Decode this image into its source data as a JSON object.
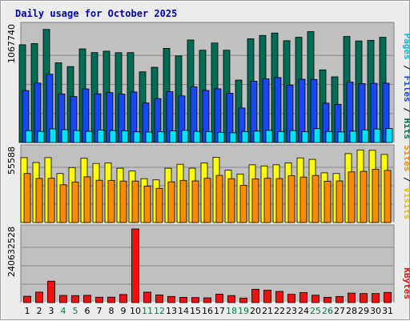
{
  "chart_data": {
    "type": "bar",
    "title": "Daily usage for October 2025",
    "days": [
      "1",
      "2",
      "3",
      "4",
      "5",
      "6",
      "7",
      "8",
      "9",
      "10",
      "11",
      "12",
      "13",
      "14",
      "15",
      "16",
      "17",
      "18",
      "19",
      "20",
      "21",
      "22",
      "23",
      "24",
      "25",
      "26",
      "27",
      "28",
      "29",
      "30",
      "31"
    ],
    "weekend_days": [
      "4",
      "5",
      "11",
      "12",
      "18",
      "19",
      "25",
      "26"
    ],
    "panels": [
      {
        "id": "top",
        "ymax_label": "1067740",
        "ymax": 1067740,
        "series": [
          {
            "name": "Hits",
            "color": "#006c54",
            "values": [
              899000,
              910000,
              1040000,
              733000,
              698000,
              861000,
              827000,
              840000,
              826000,
              827000,
              650000,
              692000,
              866000,
              796000,
              943000,
              849000,
              915000,
              849000,
              574000,
              954000,
              985000,
              1007000,
              936000,
              968000,
              1020000,
              668000,
              604000,
              975000,
              934000,
              940000,
              968000
            ]
          },
          {
            "name": "Files",
            "color": "#1846f0",
            "values": [
              478000,
              547000,
              628000,
              447000,
              423000,
              493000,
              448000,
              459000,
              445000,
              465000,
              364000,
              404000,
              468000,
              429000,
              512000,
              479000,
              494000,
              453000,
              317000,
              564000,
              586000,
              597000,
              528000,
              582000,
              580000,
              362000,
              351000,
              556000,
              542000,
              544000,
              545000
            ]
          },
          {
            "name": "Pages",
            "color": "#00e0ff",
            "values": [
              109000,
              102000,
              125000,
              118000,
              110000,
              103000,
              115000,
              110000,
              108000,
              98000,
              96000,
              100000,
              107000,
              112000,
              102000,
              101000,
              93000,
              89000,
              101000,
              105000,
              111000,
              101000,
              109000,
              99000,
              127000,
              101000,
              97000,
              104000,
              116000,
              124000,
              129000
            ]
          }
        ]
      },
      {
        "id": "middle",
        "ymax_label": "55588",
        "ymax": 55588,
        "series": [
          {
            "name": "Visits",
            "color": "#ffff00",
            "values": [
              49000,
              45300,
              49000,
              37000,
              41500,
              48500,
              44600,
              44900,
              41000,
              38900,
              33100,
              32200,
              41000,
              44000,
              41000,
              44900,
              49300,
              39500,
              36600,
              43600,
              42700,
              43600,
              45000,
              48800,
              47700,
              37500,
              37000,
              52000,
              54800,
              54500,
              51400
            ]
          },
          {
            "name": "Sites",
            "color": "#ff8c00",
            "values": [
              37000,
              33300,
              33400,
              28500,
              30600,
              34500,
              31900,
              31800,
              31300,
              31300,
              27500,
              25800,
              30700,
              31800,
              31400,
              33400,
              35600,
              33100,
              28100,
              33000,
              33400,
              33200,
              35300,
              34300,
              35500,
              31200,
              31400,
              38200,
              38600,
              40200,
              39300
            ]
          }
        ]
      },
      {
        "id": "bottom",
        "ymax_label": "240632528",
        "ymax": 240632528,
        "series": [
          {
            "name": "KBytes",
            "color": "#f01010",
            "values": [
              20800000,
              34300000,
              70000000,
              23500000,
              23000000,
              23800000,
              17600000,
              17800000,
              26400000,
              240632528,
              34100000,
              25200000,
              20100000,
              17100000,
              16500000,
              15600000,
              27600000,
              23000000,
              14900000,
              43600000,
              40400000,
              36600000,
              27100000,
              33000000,
              24300000,
              17300000,
              20100000,
              31000000,
              29600000,
              29600000,
              33300000
            ]
          }
        ]
      }
    ],
    "legend": {
      "top": [
        {
          "text": "Pages",
          "color": "#00c0d8"
        },
        {
          "text": " / ",
          "color": "#000000"
        },
        {
          "text": "Files",
          "color": "#1846f0"
        },
        {
          "text": " / ",
          "color": "#000000"
        },
        {
          "text": "Hits",
          "color": "#006c54"
        }
      ],
      "middle": [
        {
          "text": "Sites",
          "color": "#ff8c00"
        },
        {
          "text": " / ",
          "color": "#000000"
        },
        {
          "text": "Visits",
          "color": "#e0c000"
        }
      ],
      "bottom": [
        {
          "text": "KBytes",
          "color": "#f01010"
        }
      ]
    },
    "colors": {
      "plot_background": "#c0c0c0",
      "frame": "#ececec",
      "title": "#0000b0",
      "weekday_label": "#000000",
      "weekend_label": "#008040"
    }
  }
}
